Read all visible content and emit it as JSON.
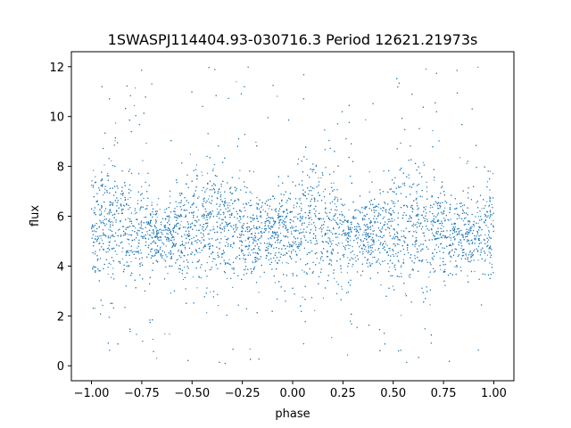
{
  "chart_data": {
    "type": "scatter",
    "title": "1SWASPJ114404.93-030716.3 Period 12621.21973s",
    "xlabel": "phase",
    "ylabel": "flux",
    "xlim": [
      -1.1,
      1.1
    ],
    "ylim": [
      -0.6,
      12.6
    ],
    "xticks": [
      -1.0,
      -0.75,
      -0.5,
      -0.25,
      0.0,
      0.25,
      0.5,
      0.75,
      1.0
    ],
    "xtick_labels": [
      "−1.00",
      "−0.75",
      "−0.50",
      "−0.25",
      "0.00",
      "0.25",
      "0.50",
      "0.75",
      "1.00"
    ],
    "yticks": [
      0,
      2,
      4,
      6,
      8,
      10,
      12
    ],
    "ytick_labels": [
      "0",
      "2",
      "4",
      "6",
      "8",
      "10",
      "12"
    ],
    "grid": false,
    "marker_color": "#1f77b4",
    "data_x_range": [
      -1.0,
      1.0
    ],
    "data_y_range": [
      0.0,
      12.0
    ],
    "median_flux": 5.4,
    "flux_modulation": {
      "phase_of_max_spread": [
        -0.9,
        -0.4,
        0.1,
        0.6
      ],
      "phase_of_min_spread": [
        -0.65,
        -0.15,
        0.35,
        0.85
      ]
    }
  }
}
